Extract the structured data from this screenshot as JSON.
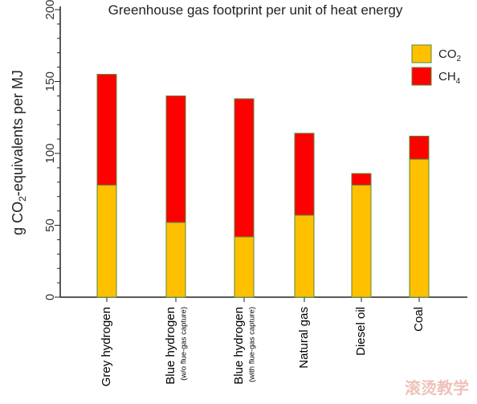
{
  "chart_data": {
    "type": "bar",
    "stacked": true,
    "title": "Greenhouse gas footprint per unit of heat energy",
    "ylabel": "g CO₂-equivalents per MJ",
    "ylim": [
      0,
      200
    ],
    "yticks": [
      "0",
      "50",
      "100",
      "150",
      "200"
    ],
    "grid": false,
    "legend_position": "top-right",
    "categories": [
      {
        "label": "Grey hydrogen",
        "note": ""
      },
      {
        "label": "Blue hydrogen",
        "note": "(w/o flue-gas capture)"
      },
      {
        "label": "Blue hydrogen",
        "note": "(with flue-gas capture)"
      },
      {
        "label": "Natural gas",
        "note": ""
      },
      {
        "label": "Diesel oil",
        "note": ""
      },
      {
        "label": "Coal",
        "note": ""
      }
    ],
    "series": [
      {
        "name": "CO₂",
        "color": "#FFC000",
        "values": [
          78,
          52,
          42,
          57,
          78,
          96
        ]
      },
      {
        "name": "CH₄",
        "color": "#FF0000",
        "values": [
          77,
          88,
          96,
          57,
          8,
          16
        ]
      }
    ],
    "stroke_color": "#5a8a3a"
  },
  "watermark": "滚烫教学"
}
